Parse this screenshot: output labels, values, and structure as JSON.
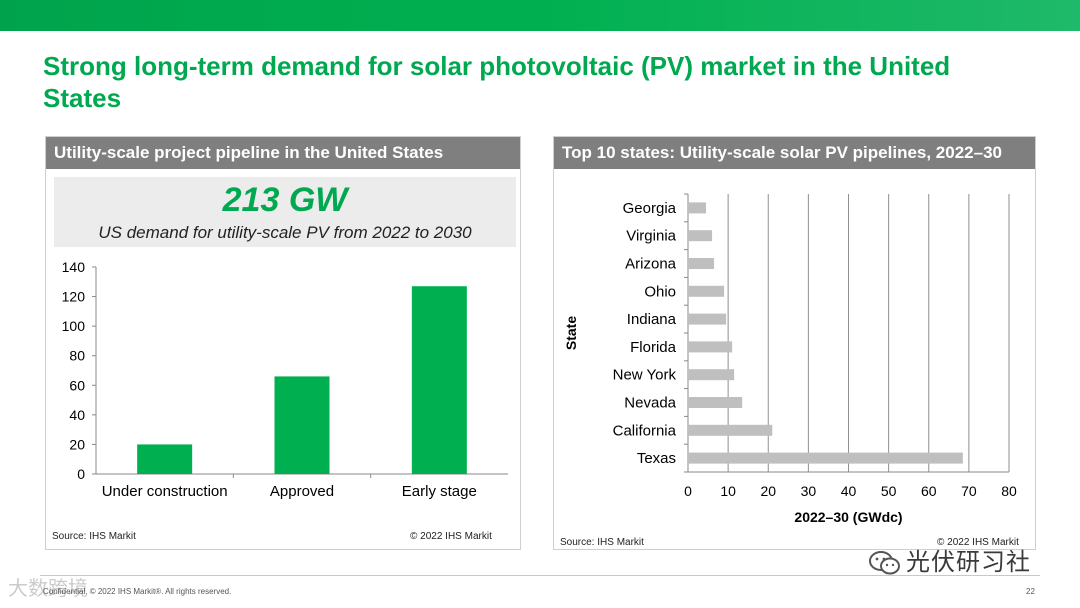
{
  "slide": {
    "title": "Strong long-term demand for solar photovoltaic (PV) market in the United States",
    "footer": "Confidential. © 2022 IHS Markit®. All rights reserved.",
    "page_number": "22",
    "watermark_right": "光伏研习社",
    "watermark_left": "大数跨境"
  },
  "left_panel": {
    "header": "Utility-scale project pipeline in the United States",
    "kpi_value": "213 GW",
    "kpi_desc": "US demand for utility-scale PV from 2022 to 2030",
    "source": "Source: IHS Markit",
    "copyright": "© 2022 IHS Markit"
  },
  "right_panel": {
    "header": "Top 10 states: Utility-scale solar PV pipelines, 2022–30",
    "source": "Source: IHS Markit",
    "copyright": "© 2022 IHS Markit"
  },
  "colors": {
    "green": "#00b050",
    "gray_bar": "#bfbfbf",
    "header_gray": "#7f7f7f"
  },
  "chart_data": [
    {
      "type": "bar",
      "title": "",
      "categories": [
        "Under construction",
        "Approved",
        "Early stage"
      ],
      "values": [
        20,
        66,
        127
      ],
      "ylim": [
        0,
        140
      ],
      "yticks": [
        0,
        20,
        40,
        60,
        80,
        100,
        120,
        140
      ],
      "xlabel": "",
      "ylabel": "",
      "grid": false
    },
    {
      "type": "bar",
      "orientation": "horizontal",
      "title": "",
      "categories": [
        "Georgia",
        "Virginia",
        "Arizona",
        "Ohio",
        "Indiana",
        "Florida",
        "New York",
        "Nevada",
        "California",
        "Texas"
      ],
      "values": [
        4.5,
        6,
        6.5,
        9,
        9.5,
        11,
        11.5,
        13.5,
        21,
        68.5
      ],
      "xlim": [
        0,
        80
      ],
      "xticks": [
        0,
        10,
        20,
        30,
        40,
        50,
        60,
        70,
        80
      ],
      "xlabel": "2022–30 (GWdc)",
      "ylabel": "State",
      "grid": true
    }
  ]
}
